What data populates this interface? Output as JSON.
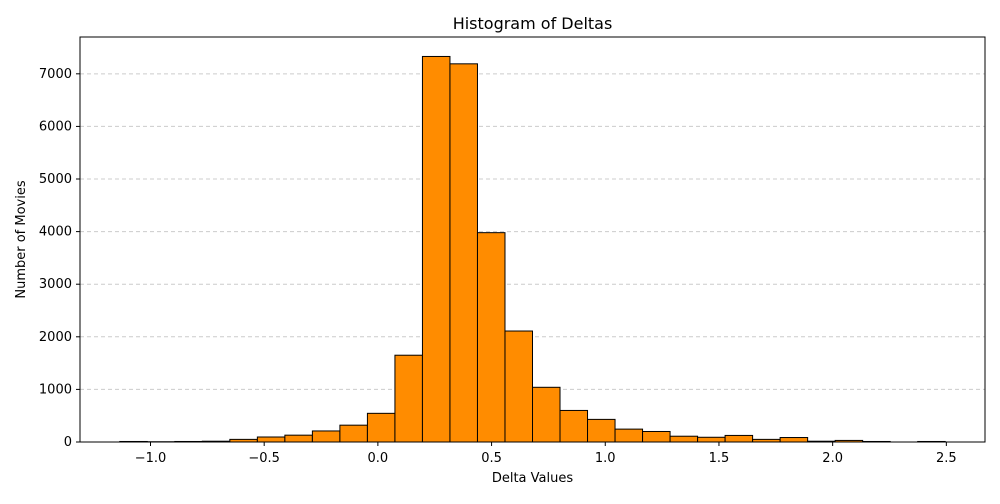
{
  "chart_data": {
    "type": "bar",
    "title": "Histogram of Deltas",
    "xlabel": "Delta Values",
    "ylabel": "Number of Movies",
    "bar_color": "#ff8c00",
    "edge_color": "#000000",
    "grid_color": "#cccccc",
    "grid": "y-dashed",
    "xlim": [
      -1.31,
      2.67
    ],
    "ylim": [
      0,
      7700
    ],
    "x_ticks": [
      -1.0,
      -0.5,
      0.0,
      0.5,
      1.0,
      1.5,
      2.0,
      2.5
    ],
    "x_tick_labels": [
      "−1.0",
      "−0.5",
      "0.0",
      "0.5",
      "1.0",
      "1.5",
      "2.0",
      "2.5"
    ],
    "y_ticks": [
      0,
      1000,
      2000,
      3000,
      4000,
      5000,
      6000,
      7000
    ],
    "y_tick_labels": [
      "0",
      "1000",
      "2000",
      "3000",
      "4000",
      "5000",
      "6000",
      "7000"
    ],
    "bin_width": 0.121,
    "bins": [
      {
        "x0": -1.135,
        "count": 10
      },
      {
        "x0": -1.014,
        "count": 5
      },
      {
        "x0": -0.893,
        "count": 10
      },
      {
        "x0": -0.772,
        "count": 15
      },
      {
        "x0": -0.651,
        "count": 50
      },
      {
        "x0": -0.53,
        "count": 95
      },
      {
        "x0": -0.409,
        "count": 130
      },
      {
        "x0": -0.288,
        "count": 210
      },
      {
        "x0": -0.167,
        "count": 320
      },
      {
        "x0": -0.046,
        "count": 545
      },
      {
        "x0": 0.075,
        "count": 1650
      },
      {
        "x0": 0.196,
        "count": 7330
      },
      {
        "x0": 0.317,
        "count": 7190
      },
      {
        "x0": 0.438,
        "count": 3980
      },
      {
        "x0": 0.559,
        "count": 2110
      },
      {
        "x0": 0.68,
        "count": 1040
      },
      {
        "x0": 0.801,
        "count": 600
      },
      {
        "x0": 0.922,
        "count": 430
      },
      {
        "x0": 1.043,
        "count": 245
      },
      {
        "x0": 1.164,
        "count": 200
      },
      {
        "x0": 1.285,
        "count": 110
      },
      {
        "x0": 1.406,
        "count": 90
      },
      {
        "x0": 1.527,
        "count": 125
      },
      {
        "x0": 1.648,
        "count": 50
      },
      {
        "x0": 1.769,
        "count": 85
      },
      {
        "x0": 1.89,
        "count": 15
      },
      {
        "x0": 2.011,
        "count": 30
      },
      {
        "x0": 2.132,
        "count": 10
      },
      {
        "x0": 2.253,
        "count": 0
      },
      {
        "x0": 2.374,
        "count": 10
      }
    ]
  }
}
